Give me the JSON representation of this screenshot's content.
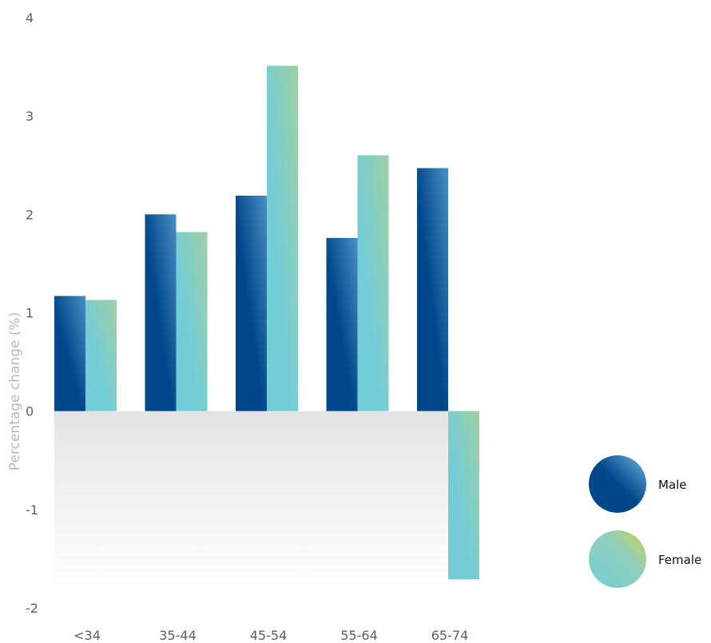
{
  "chart_data": {
    "type": "bar",
    "ylabel": "Percentage change (%)",
    "xlabel": "",
    "ylim": [
      -2,
      4
    ],
    "yticks": [
      4,
      3,
      2,
      1,
      0,
      -1,
      -2
    ],
    "categories": [
      "<34",
      "35-44",
      "45-54",
      "55-64",
      "65-74"
    ],
    "series": [
      {
        "name": "Male",
        "values": [
          1.17,
          2.0,
          2.19,
          1.76,
          2.47
        ]
      },
      {
        "name": "Female",
        "values": [
          1.13,
          1.82,
          3.51,
          2.6,
          -1.71
        ]
      }
    ],
    "legend_position": "right",
    "colors": {
      "male_light": "#4a8fc4",
      "male_dark": "#00478a",
      "female_light": "#9fd0a4",
      "female_dark": "#74cdd6",
      "female_legend_accent": "#cad24a",
      "negative_band": "#e4e4e4"
    }
  },
  "legend": [
    {
      "label": "Male",
      "icon": "male-swatch-icon"
    },
    {
      "label": "Female",
      "icon": "female-swatch-icon"
    }
  ]
}
